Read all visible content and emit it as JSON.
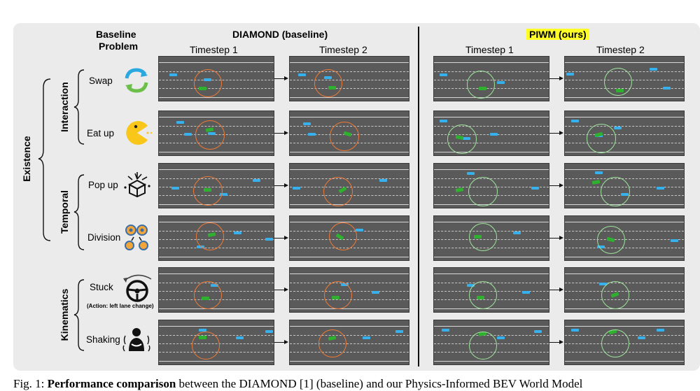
{
  "headers": {
    "baseline_problem": [
      "Baseline",
      "Problem"
    ],
    "diamond_title": "DIAMOND (baseline)",
    "piwm_title": "PIWM (ours)",
    "timestep1": "Timestep 1",
    "timestep2": "Timestep 2"
  },
  "categories": {
    "existence": "Existence",
    "interaction": "Interaction",
    "temporal": "Temporal",
    "kinematics": "Kinematics"
  },
  "problems": [
    {
      "label": "Swap",
      "icon": "swap-arrows-icon"
    },
    {
      "label": "Eat up",
      "icon": "pacman-icon"
    },
    {
      "label": "Pop up",
      "icon": "pop-up-box-icon"
    },
    {
      "label": "Division",
      "icon": "division-cells-icon"
    },
    {
      "label": "Stuck",
      "sub": "(Action: left lane change)",
      "icon": "steering-wheel-icon"
    },
    {
      "label": "Shaking",
      "icon": "shaking-person-icon"
    }
  ],
  "caption": {
    "prefix": "Fig. 1: ",
    "bold": "Performance comparison",
    "rest": " between the DIAMOND [1] (baseline) and our Physics-Informed BEV World Model"
  },
  "colors": {
    "road": "#5a5a5a",
    "ego_car": "#2fb12f",
    "other_car": "#36b1ee",
    "baseline_circle": "#f07a35",
    "ours_circle": "#9ee69c",
    "highlight": "#ffff26"
  }
}
